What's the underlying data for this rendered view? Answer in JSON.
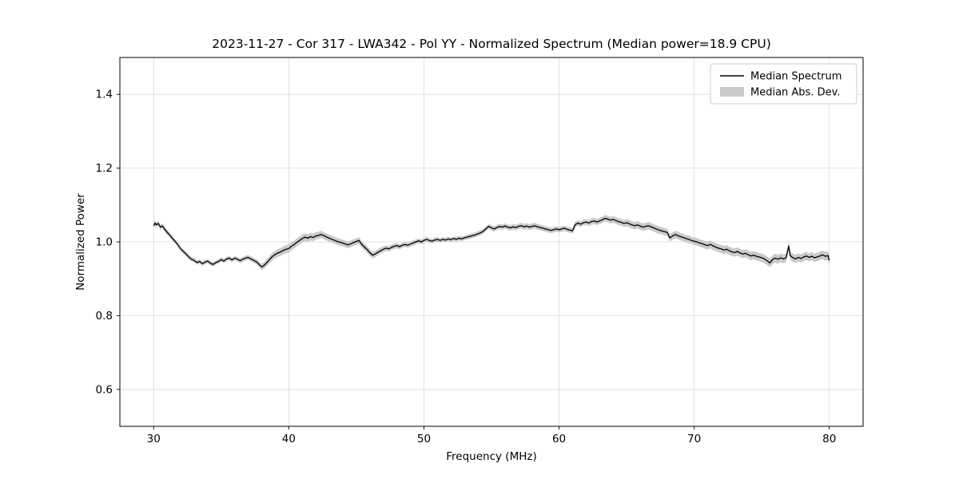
{
  "figure": {
    "background": "#ffffff"
  },
  "chart_data": {
    "type": "line",
    "title": "2023-11-27 - Cor 317 - LWA342 - Pol YY - Normalized Spectrum (Median power=18.9 CPU)",
    "xlabel": "Frequency (MHz)",
    "ylabel": "Normalized Power",
    "xlim": [
      27.5,
      82.5
    ],
    "ylim": [
      0.5,
      1.5
    ],
    "xticks": [
      30,
      40,
      50,
      60,
      70,
      80
    ],
    "xtick_labels": [
      "30",
      "40",
      "50",
      "60",
      "70",
      "80"
    ],
    "yticks": [
      0.6,
      0.8,
      1.0,
      1.2,
      1.4
    ],
    "ytick_labels": [
      "0.6",
      "0.8",
      "1.0",
      "1.2",
      "1.4"
    ],
    "grid": true,
    "legend_position": "upper right",
    "style": {
      "line_color": "#000000",
      "band_color": "#bdbdbd",
      "band_opacity": 0.8,
      "grid_color": "#d9d9d9",
      "spine_color": "#000000",
      "legend_edge_color": "#cccccc",
      "legend_face_color": "#ffffff",
      "text_color": "#000000"
    },
    "legend": [
      {
        "label": "Median Spectrum",
        "type": "line",
        "color": "#000000"
      },
      {
        "label": "Median Abs. Dev.",
        "type": "patch",
        "color": "#bdbdbd"
      }
    ],
    "band": {
      "name": "Median Abs. Dev.",
      "mad_anchors": [
        [
          30,
          0.007
        ],
        [
          33,
          0.006
        ],
        [
          36,
          0.006
        ],
        [
          37.5,
          0.007
        ],
        [
          38.5,
          0.01
        ],
        [
          40,
          0.011
        ],
        [
          42,
          0.01
        ],
        [
          44,
          0.009
        ],
        [
          46,
          0.009
        ],
        [
          48,
          0.007
        ],
        [
          52,
          0.006
        ],
        [
          55,
          0.007
        ],
        [
          58,
          0.008
        ],
        [
          60,
          0.007
        ],
        [
          62,
          0.008
        ],
        [
          64,
          0.009
        ],
        [
          66,
          0.01
        ],
        [
          68,
          0.01
        ],
        [
          70,
          0.01
        ],
        [
          72,
          0.011
        ],
        [
          74,
          0.011
        ],
        [
          76,
          0.012
        ],
        [
          78,
          0.011
        ],
        [
          80,
          0.012
        ]
      ]
    },
    "series": [
      {
        "name": "Median Spectrum",
        "color": "#000000",
        "points": [
          [
            30.0,
            1.044
          ],
          [
            30.1,
            1.051
          ],
          [
            30.2,
            1.046
          ],
          [
            30.35,
            1.05
          ],
          [
            30.5,
            1.04
          ],
          [
            30.65,
            1.043
          ],
          [
            30.8,
            1.035
          ],
          [
            31.0,
            1.026
          ],
          [
            31.2,
            1.018
          ],
          [
            31.4,
            1.009
          ],
          [
            31.6,
            1.001
          ],
          [
            31.8,
            0.992
          ],
          [
            32.0,
            0.981
          ],
          [
            32.2,
            0.974
          ],
          [
            32.4,
            0.967
          ],
          [
            32.6,
            0.959
          ],
          [
            32.8,
            0.953
          ],
          [
            33.0,
            0.95
          ],
          [
            33.2,
            0.944
          ],
          [
            33.4,
            0.947
          ],
          [
            33.6,
            0.941
          ],
          [
            33.8,
            0.945
          ],
          [
            34.0,
            0.948
          ],
          [
            34.2,
            0.942
          ],
          [
            34.4,
            0.939
          ],
          [
            34.6,
            0.944
          ],
          [
            34.8,
            0.947
          ],
          [
            35.0,
            0.952
          ],
          [
            35.2,
            0.948
          ],
          [
            35.4,
            0.954
          ],
          [
            35.6,
            0.956
          ],
          [
            35.8,
            0.951
          ],
          [
            36.0,
            0.956
          ],
          [
            36.2,
            0.953
          ],
          [
            36.4,
            0.949
          ],
          [
            36.6,
            0.953
          ],
          [
            36.8,
            0.956
          ],
          [
            37.0,
            0.958
          ],
          [
            37.2,
            0.954
          ],
          [
            37.4,
            0.95
          ],
          [
            37.6,
            0.946
          ],
          [
            37.8,
            0.939
          ],
          [
            38.0,
            0.932
          ],
          [
            38.2,
            0.937
          ],
          [
            38.4,
            0.945
          ],
          [
            38.6,
            0.953
          ],
          [
            38.8,
            0.961
          ],
          [
            39.0,
            0.966
          ],
          [
            39.2,
            0.97
          ],
          [
            39.4,
            0.973
          ],
          [
            39.6,
            0.977
          ],
          [
            39.8,
            0.98
          ],
          [
            40.0,
            0.982
          ],
          [
            40.2,
            0.988
          ],
          [
            40.4,
            0.993
          ],
          [
            40.6,
            0.999
          ],
          [
            40.8,
            1.004
          ],
          [
            41.0,
            1.009
          ],
          [
            41.2,
            1.013
          ],
          [
            41.4,
            1.01
          ],
          [
            41.6,
            1.014
          ],
          [
            41.8,
            1.012
          ],
          [
            42.0,
            1.016
          ],
          [
            42.2,
            1.018
          ],
          [
            42.4,
            1.02
          ],
          [
            42.6,
            1.017
          ],
          [
            42.8,
            1.013
          ],
          [
            43.0,
            1.01
          ],
          [
            43.2,
            1.007
          ],
          [
            43.4,
            1.004
          ],
          [
            43.6,
            1.001
          ],
          [
            43.8,
            0.999
          ],
          [
            44.0,
            0.997
          ],
          [
            44.2,
            0.994
          ],
          [
            44.4,
            0.992
          ],
          [
            44.6,
            0.995
          ],
          [
            44.8,
            0.998
          ],
          [
            45.0,
            1.001
          ],
          [
            45.2,
            1.004
          ],
          [
            45.4,
            0.993
          ],
          [
            45.6,
            0.986
          ],
          [
            45.8,
            0.979
          ],
          [
            46.0,
            0.971
          ],
          [
            46.2,
            0.964
          ],
          [
            46.4,
            0.967
          ],
          [
            46.6,
            0.972
          ],
          [
            46.8,
            0.976
          ],
          [
            47.0,
            0.98
          ],
          [
            47.2,
            0.983
          ],
          [
            47.4,
            0.981
          ],
          [
            47.6,
            0.985
          ],
          [
            47.8,
            0.988
          ],
          [
            48.0,
            0.99
          ],
          [
            48.2,
            0.987
          ],
          [
            48.4,
            0.991
          ],
          [
            48.6,
            0.993
          ],
          [
            48.8,
            0.991
          ],
          [
            49.0,
            0.994
          ],
          [
            49.2,
            0.997
          ],
          [
            49.4,
            1.0
          ],
          [
            49.6,
            1.003
          ],
          [
            49.8,
            1.0
          ],
          [
            50.0,
            1.004
          ],
          [
            50.2,
            1.007
          ],
          [
            50.4,
            1.004
          ],
          [
            50.6,
            1.002
          ],
          [
            50.8,
            1.005
          ],
          [
            51.0,
            1.007
          ],
          [
            51.2,
            1.004
          ],
          [
            51.4,
            1.007
          ],
          [
            51.6,
            1.005
          ],
          [
            51.8,
            1.008
          ],
          [
            52.0,
            1.006
          ],
          [
            52.2,
            1.009
          ],
          [
            52.4,
            1.007
          ],
          [
            52.6,
            1.01
          ],
          [
            52.8,
            1.008
          ],
          [
            53.0,
            1.011
          ],
          [
            53.2,
            1.013
          ],
          [
            53.4,
            1.015
          ],
          [
            53.6,
            1.017
          ],
          [
            53.8,
            1.019
          ],
          [
            54.0,
            1.022
          ],
          [
            54.2,
            1.025
          ],
          [
            54.4,
            1.029
          ],
          [
            54.6,
            1.036
          ],
          [
            54.8,
            1.042
          ],
          [
            55.0,
            1.038
          ],
          [
            55.2,
            1.035
          ],
          [
            55.4,
            1.039
          ],
          [
            55.6,
            1.042
          ],
          [
            55.8,
            1.04
          ],
          [
            56.0,
            1.043
          ],
          [
            56.2,
            1.04
          ],
          [
            56.4,
            1.038
          ],
          [
            56.6,
            1.041
          ],
          [
            56.8,
            1.039
          ],
          [
            57.0,
            1.042
          ],
          [
            57.2,
            1.044
          ],
          [
            57.4,
            1.041
          ],
          [
            57.6,
            1.043
          ],
          [
            57.8,
            1.04
          ],
          [
            58.0,
            1.042
          ],
          [
            58.2,
            1.044
          ],
          [
            58.4,
            1.041
          ],
          [
            58.6,
            1.039
          ],
          [
            58.8,
            1.037
          ],
          [
            59.0,
            1.035
          ],
          [
            59.2,
            1.033
          ],
          [
            59.4,
            1.031
          ],
          [
            59.6,
            1.033
          ],
          [
            59.8,
            1.035
          ],
          [
            60.0,
            1.033
          ],
          [
            60.2,
            1.035
          ],
          [
            60.4,
            1.037
          ],
          [
            60.6,
            1.034
          ],
          [
            60.8,
            1.032
          ],
          [
            61.0,
            1.03
          ],
          [
            61.2,
            1.047
          ],
          [
            61.4,
            1.051
          ],
          [
            61.6,
            1.048
          ],
          [
            61.8,
            1.052
          ],
          [
            62.0,
            1.054
          ],
          [
            62.2,
            1.051
          ],
          [
            62.4,
            1.055
          ],
          [
            62.6,
            1.057
          ],
          [
            62.8,
            1.054
          ],
          [
            63.0,
            1.057
          ],
          [
            63.2,
            1.06
          ],
          [
            63.4,
            1.064
          ],
          [
            63.6,
            1.062
          ],
          [
            63.8,
            1.059
          ],
          [
            64.0,
            1.061
          ],
          [
            64.2,
            1.058
          ],
          [
            64.4,
            1.055
          ],
          [
            64.6,
            1.053
          ],
          [
            64.8,
            1.05
          ],
          [
            65.0,
            1.052
          ],
          [
            65.2,
            1.049
          ],
          [
            65.4,
            1.046
          ],
          [
            65.6,
            1.044
          ],
          [
            65.8,
            1.046
          ],
          [
            66.0,
            1.043
          ],
          [
            66.2,
            1.04
          ],
          [
            66.4,
            1.042
          ],
          [
            66.6,
            1.044
          ],
          [
            66.8,
            1.041
          ],
          [
            67.0,
            1.038
          ],
          [
            67.2,
            1.035
          ],
          [
            67.4,
            1.032
          ],
          [
            67.6,
            1.03
          ],
          [
            67.8,
            1.028
          ],
          [
            68.0,
            1.026
          ],
          [
            68.2,
            1.011
          ],
          [
            68.4,
            1.016
          ],
          [
            68.6,
            1.02
          ],
          [
            68.8,
            1.017
          ],
          [
            69.0,
            1.014
          ],
          [
            69.2,
            1.012
          ],
          [
            69.4,
            1.009
          ],
          [
            69.6,
            1.007
          ],
          [
            69.8,
            1.004
          ],
          [
            70.0,
            1.002
          ],
          [
            70.2,
            1.0
          ],
          [
            70.4,
            0.997
          ],
          [
            70.6,
            0.995
          ],
          [
            70.8,
            0.992
          ],
          [
            71.0,
            0.99
          ],
          [
            71.2,
            0.993
          ],
          [
            71.4,
            0.989
          ],
          [
            71.6,
            0.986
          ],
          [
            71.8,
            0.983
          ],
          [
            72.0,
            0.981
          ],
          [
            72.2,
            0.978
          ],
          [
            72.4,
            0.98
          ],
          [
            72.6,
            0.976
          ],
          [
            72.8,
            0.973
          ],
          [
            73.0,
            0.971
          ],
          [
            73.2,
            0.974
          ],
          [
            73.4,
            0.97
          ],
          [
            73.6,
            0.967
          ],
          [
            73.8,
            0.969
          ],
          [
            74.0,
            0.965
          ],
          [
            74.2,
            0.962
          ],
          [
            74.4,
            0.964
          ],
          [
            74.6,
            0.961
          ],
          [
            74.8,
            0.959
          ],
          [
            75.0,
            0.957
          ],
          [
            75.2,
            0.954
          ],
          [
            75.4,
            0.949
          ],
          [
            75.6,
            0.943
          ],
          [
            75.8,
            0.952
          ],
          [
            76.0,
            0.956
          ],
          [
            76.2,
            0.953
          ],
          [
            76.4,
            0.957
          ],
          [
            76.6,
            0.954
          ],
          [
            76.8,
            0.957
          ],
          [
            77.0,
            0.989
          ],
          [
            77.1,
            0.963
          ],
          [
            77.3,
            0.957
          ],
          [
            77.5,
            0.954
          ],
          [
            77.7,
            0.958
          ],
          [
            77.9,
            0.955
          ],
          [
            78.1,
            0.959
          ],
          [
            78.3,
            0.962
          ],
          [
            78.5,
            0.958
          ],
          [
            78.7,
            0.961
          ],
          [
            78.9,
            0.957
          ],
          [
            79.1,
            0.959
          ],
          [
            79.3,
            0.962
          ],
          [
            79.5,
            0.965
          ],
          [
            79.7,
            0.961
          ],
          [
            79.9,
            0.963
          ],
          [
            80.0,
            0.95
          ]
        ]
      }
    ]
  }
}
